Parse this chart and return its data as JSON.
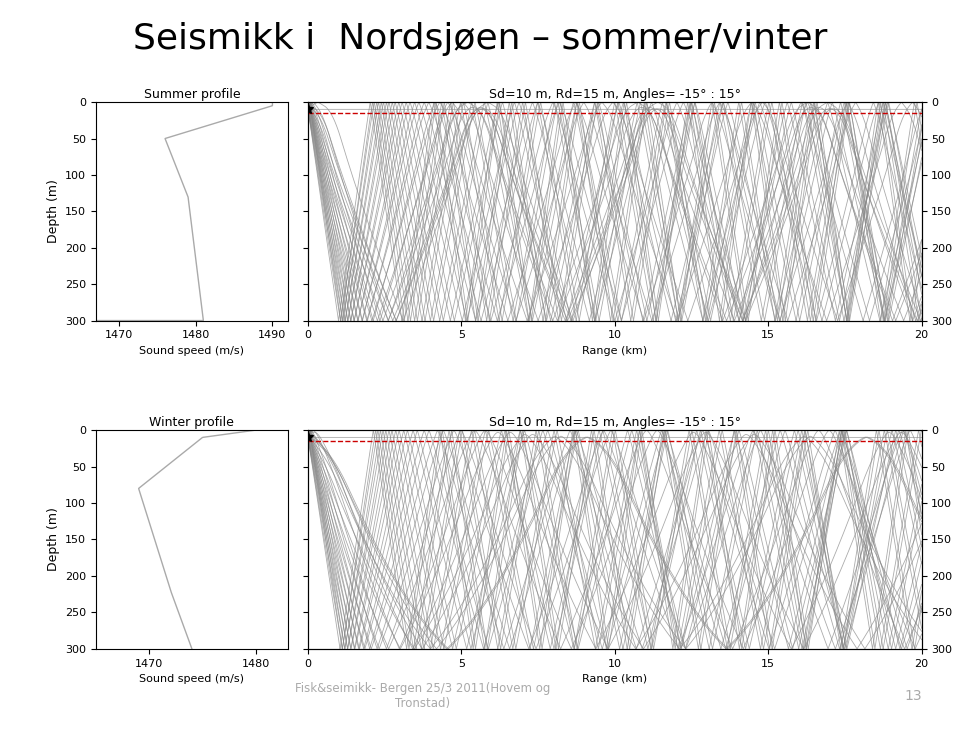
{
  "title": "Seismikk i  Nordsjøen – sommer/vinter",
  "title_fontsize": 26,
  "subtitle_summer": "Sd=10 m, Rd=15 m, Angles= -15° : 15°",
  "subtitle_winter": "Sd=10 m, Rd=15 m, Angles= -15° : 15°",
  "profile_label_summer": "Summer profile",
  "profile_label_winter": "Winter profile",
  "xlabel_profile": "Sound speed (m/s)",
  "xlabel_ray": "Range (km)",
  "ylabel": "Depth (m)",
  "depth_min": 0,
  "depth_max": 300,
  "range_min": 0,
  "range_max": 20,
  "speed_min_summer": 1467,
  "speed_max_summer": 1492,
  "speed_ticks_summer": [
    1470,
    1480,
    1490
  ],
  "speed_min_winter": 1465,
  "speed_max_winter": 1483,
  "speed_ticks_winter": [
    1470,
    1480
  ],
  "range_ticks": [
    0,
    5,
    10,
    15,
    20
  ],
  "depth_ticks": [
    0,
    50,
    100,
    150,
    200,
    250,
    300
  ],
  "footer_text": "Fisk&seimikk- Bergen 25/3 2011(Hovem og\nTronstad)",
  "footer_number": "13",
  "ray_color": "#888888",
  "ray_linewidth": 0.6,
  "ray_alpha": 0.7,
  "dashed_line_color": "#cc0000",
  "source_depth": 10,
  "receiver_depth": 15,
  "num_rays": 31,
  "angles_deg_min": -15,
  "angles_deg_max": 15,
  "water_depth": 300,
  "background_color": "#ffffff"
}
